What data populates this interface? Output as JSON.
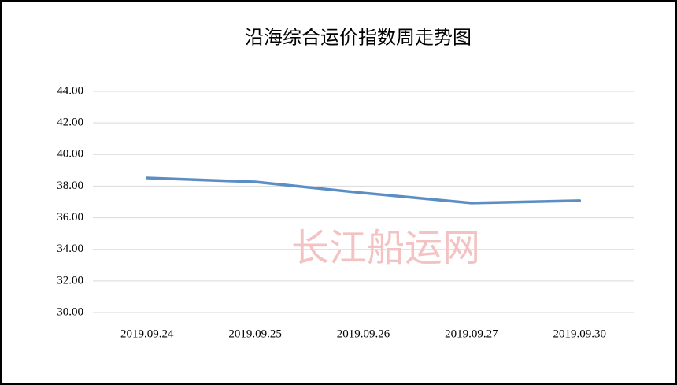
{
  "chart_data": {
    "type": "line",
    "title": "沿海综合运价指数周走势图",
    "watermark": "长江船运网",
    "categories": [
      "2019.09.24",
      "2019.09.25",
      "2019.09.26",
      "2019.09.27",
      "2019.09.30"
    ],
    "values": [
      38.52,
      38.27,
      37.57,
      36.93,
      37.08
    ],
    "color": "#5b8ec4",
    "ylim": [
      30,
      44
    ],
    "yticks": [
      {
        "value": 30,
        "label": "30.00"
      },
      {
        "value": 32,
        "label": "32.00"
      },
      {
        "value": 34,
        "label": "34.00"
      },
      {
        "value": 36,
        "label": "36.00"
      },
      {
        "value": 38,
        "label": "38.00"
      },
      {
        "value": 40,
        "label": "40.00"
      },
      {
        "value": 42,
        "label": "42.00"
      },
      {
        "value": 44,
        "label": "44.00"
      }
    ],
    "grid": true
  }
}
